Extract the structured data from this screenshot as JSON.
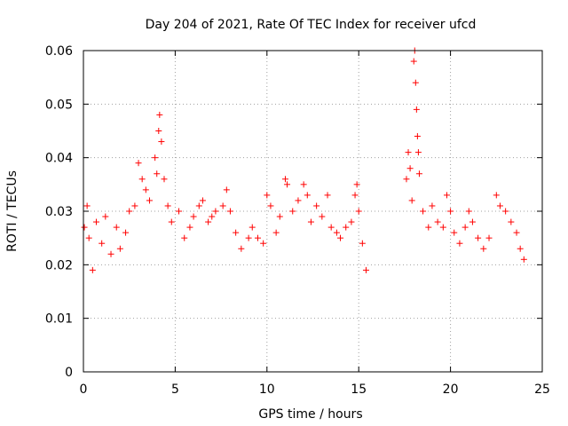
{
  "chart_data": {
    "type": "scatter",
    "title": "Day 204 of 2021, Rate Of TEC Index for receiver ufcd",
    "xlabel": "GPS time / hours",
    "ylabel": "ROTI / TECUs",
    "xlim": [
      0,
      25
    ],
    "ylim": [
      0,
      0.06
    ],
    "xticks": [
      0,
      5,
      10,
      15,
      20,
      25
    ],
    "xtick_labels": [
      "0",
      "5",
      "10",
      "15",
      "20",
      "25"
    ],
    "yticks": [
      0,
      0.01,
      0.02,
      0.03,
      0.04,
      0.05,
      0.06
    ],
    "ytick_labels": [
      "0",
      "0.01",
      "0.02",
      "0.03",
      "0.04",
      "0.05",
      "0.06"
    ],
    "grid": true,
    "marker": "+",
    "color": "#ff0000",
    "data_gap_hours": [
      15.5,
      17.5
    ],
    "series": [
      {
        "name": "ROTI",
        "points": [
          [
            0.05,
            0.027
          ],
          [
            0.2,
            0.031
          ],
          [
            0.3,
            0.025
          ],
          [
            0.5,
            0.019
          ],
          [
            0.7,
            0.028
          ],
          [
            1.0,
            0.024
          ],
          [
            1.2,
            0.029
          ],
          [
            1.5,
            0.022
          ],
          [
            1.8,
            0.027
          ],
          [
            2.0,
            0.023
          ],
          [
            2.3,
            0.026
          ],
          [
            2.5,
            0.03
          ],
          [
            2.8,
            0.031
          ],
          [
            3.0,
            0.039
          ],
          [
            3.2,
            0.036
          ],
          [
            3.4,
            0.034
          ],
          [
            3.6,
            0.032
          ],
          [
            3.9,
            0.04
          ],
          [
            4.0,
            0.037
          ],
          [
            4.1,
            0.045
          ],
          [
            4.15,
            0.048
          ],
          [
            4.25,
            0.043
          ],
          [
            4.4,
            0.036
          ],
          [
            4.6,
            0.031
          ],
          [
            4.8,
            0.028
          ],
          [
            5.2,
            0.03
          ],
          [
            5.5,
            0.025
          ],
          [
            5.8,
            0.027
          ],
          [
            6.0,
            0.029
          ],
          [
            6.3,
            0.031
          ],
          [
            6.5,
            0.032
          ],
          [
            6.8,
            0.028
          ],
          [
            7.0,
            0.029
          ],
          [
            7.2,
            0.03
          ],
          [
            7.6,
            0.031
          ],
          [
            7.8,
            0.034
          ],
          [
            8.0,
            0.03
          ],
          [
            8.3,
            0.026
          ],
          [
            8.6,
            0.023
          ],
          [
            9.0,
            0.025
          ],
          [
            9.2,
            0.027
          ],
          [
            9.5,
            0.025
          ],
          [
            9.8,
            0.024
          ],
          [
            10.0,
            0.033
          ],
          [
            10.2,
            0.031
          ],
          [
            10.5,
            0.026
          ],
          [
            10.7,
            0.029
          ],
          [
            11.0,
            0.036
          ],
          [
            11.1,
            0.035
          ],
          [
            11.4,
            0.03
          ],
          [
            11.7,
            0.032
          ],
          [
            12.0,
            0.035
          ],
          [
            12.2,
            0.033
          ],
          [
            12.4,
            0.028
          ],
          [
            12.7,
            0.031
          ],
          [
            13.0,
            0.029
          ],
          [
            13.3,
            0.033
          ],
          [
            13.5,
            0.027
          ],
          [
            13.8,
            0.026
          ],
          [
            14.0,
            0.025
          ],
          [
            14.3,
            0.027
          ],
          [
            14.6,
            0.028
          ],
          [
            14.8,
            0.033
          ],
          [
            14.9,
            0.035
          ],
          [
            15.0,
            0.03
          ],
          [
            15.2,
            0.024
          ],
          [
            15.4,
            0.019
          ],
          [
            17.6,
            0.036
          ],
          [
            17.7,
            0.041
          ],
          [
            17.8,
            0.038
          ],
          [
            17.9,
            0.032
          ],
          [
            18.0,
            0.058
          ],
          [
            18.05,
            0.06
          ],
          [
            18.1,
            0.054
          ],
          [
            18.15,
            0.049
          ],
          [
            18.2,
            0.044
          ],
          [
            18.25,
            0.041
          ],
          [
            18.3,
            0.037
          ],
          [
            18.5,
            0.03
          ],
          [
            18.8,
            0.027
          ],
          [
            19.0,
            0.031
          ],
          [
            19.3,
            0.028
          ],
          [
            19.6,
            0.027
          ],
          [
            19.8,
            0.033
          ],
          [
            20.0,
            0.03
          ],
          [
            20.2,
            0.026
          ],
          [
            20.5,
            0.024
          ],
          [
            20.8,
            0.027
          ],
          [
            21.0,
            0.03
          ],
          [
            21.2,
            0.028
          ],
          [
            21.5,
            0.025
          ],
          [
            21.8,
            0.023
          ],
          [
            22.1,
            0.025
          ],
          [
            22.5,
            0.033
          ],
          [
            22.7,
            0.031
          ],
          [
            23.0,
            0.03
          ],
          [
            23.3,
            0.028
          ],
          [
            23.6,
            0.026
          ],
          [
            23.8,
            0.023
          ],
          [
            24.0,
            0.021
          ]
        ]
      }
    ]
  }
}
